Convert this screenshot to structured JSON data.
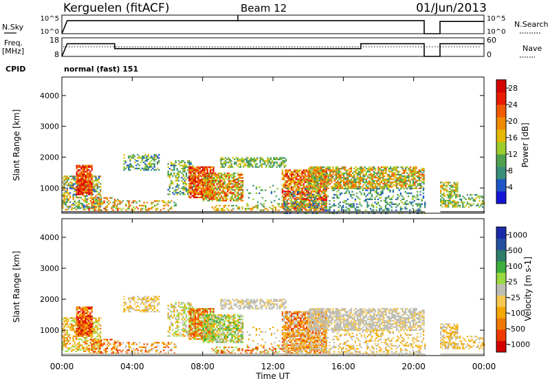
{
  "header": {
    "station": "Kerguelen (fitACF)",
    "beam": "Beam 12",
    "date": "01/Jun/2013"
  },
  "strip_panels": {
    "nsky": {
      "label": "N.Sky",
      "ticks": [
        "10^5",
        "10^0"
      ],
      "right_ticks": [
        "10^5",
        "10^0"
      ],
      "right_label": "N.Search"
    },
    "freq": {
      "label_line1": "Freq.",
      "label_line2": "[MHz]",
      "ticks": [
        "18",
        "8"
      ],
      "right_ticks": [
        "60",
        "0"
      ],
      "right_label": "Nave"
    },
    "cpid": {
      "label": "CPID",
      "value": "normal (fast) 151"
    }
  },
  "colors": {
    "power_scale": [
      "#1515d6",
      "#1e55c8",
      "#3a8e7a",
      "#4ea24e",
      "#9ccb2c",
      "#e4b800",
      "#f08a00",
      "#f05a00",
      "#e81c00",
      "#d40000"
    ],
    "velocity_scale": [
      "#d40000",
      "#ee3a00",
      "#f07a00",
      "#f3a800",
      "#f6c850",
      "#bdbdb3",
      "#9ada40",
      "#3cae3c",
      "#2f7d6a",
      "#244ea0",
      "#1a2aa8"
    ]
  },
  "chart_data": [
    {
      "type": "line",
      "name": "nsky-panel",
      "x": [
        0,
        0.3,
        20.6,
        20.6,
        21.5,
        21.5,
        24
      ],
      "series": [
        {
          "values": [
            0,
            3.5,
            3.5,
            0,
            0,
            3.3,
            3.3
          ]
        }
      ],
      "xlim": [
        0,
        24
      ]
    },
    {
      "type": "line",
      "name": "freq-panel",
      "x": [
        0,
        0.3,
        3.0,
        3.0,
        17.0,
        17.0,
        20.6,
        20.6,
        21.5,
        21.5,
        24
      ],
      "series": [
        {
          "values": [
            8,
            14.8,
            14.8,
            12.2,
            12.2,
            14.8,
            14.8,
            8,
            8,
            14.8,
            14.8
          ]
        }
      ],
      "xlim": [
        0,
        24
      ],
      "ylim": [
        8,
        18
      ]
    },
    {
      "type": "heatmap",
      "name": "power-panel",
      "ylabel": "Slant Range [km]",
      "yticks": [
        "1000",
        "2000",
        "3000",
        "4000"
      ],
      "ylim": [
        180,
        4600
      ],
      "xlim": [
        0,
        24
      ],
      "colorbar_label": "Power [dB]",
      "colorbar_ticks": [
        "28",
        "24",
        "20",
        "16",
        "12",
        "8",
        "4"
      ],
      "colorbar_range": [
        0,
        30
      ]
    },
    {
      "type": "heatmap",
      "name": "velocity-panel",
      "ylabel": "Slant Range [km]",
      "yticks": [
        "1000",
        "2000",
        "3000",
        "4000"
      ],
      "ylim": [
        180,
        4600
      ],
      "xlim": [
        0,
        24
      ],
      "colorbar_label": "Velocity [m s-1]",
      "colorbar_ticks": [
        "1000",
        "500",
        "100",
        "25",
        "-25",
        "-100",
        "-500",
        "-1000"
      ],
      "xticks": [
        "00:00",
        "04:00",
        "08:00",
        "12:00",
        "16:00",
        "20:00",
        "00:00"
      ],
      "xlabel": "Time UT"
    }
  ]
}
